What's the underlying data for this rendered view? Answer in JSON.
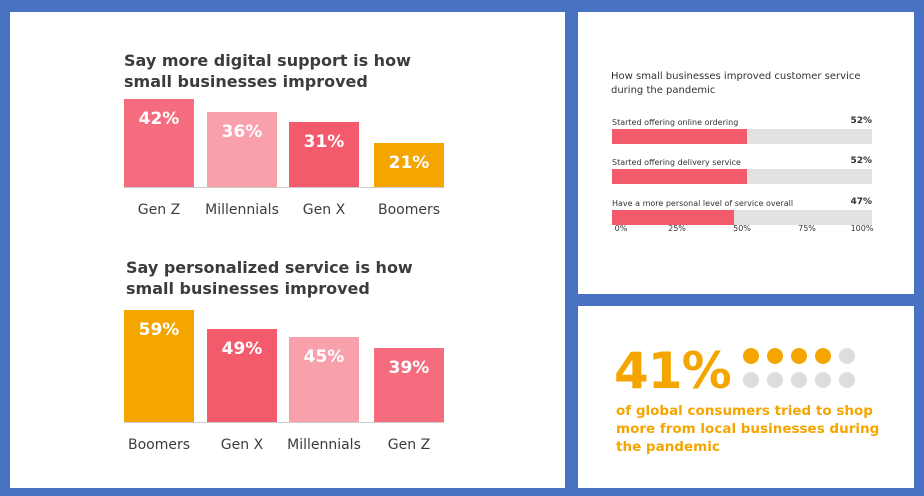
{
  "chart_data": [
    {
      "type": "bar",
      "title": "Say more digital support is how small businesses improved",
      "categories": [
        "Gen Z",
        "Millennials",
        "Gen X",
        "Boomers"
      ],
      "values": [
        42,
        36,
        31,
        21
      ],
      "value_labels": [
        "42%",
        "36%",
        "31%",
        "21%"
      ],
      "colors": [
        "#f56c7e",
        "#f8a0ac",
        "#f35a6b",
        "#f5a500"
      ],
      "ylabel": "",
      "xlabel": "",
      "ylim": [
        0,
        100
      ]
    },
    {
      "type": "bar",
      "title": "Say personalized service is how small businesses improved",
      "categories": [
        "Boomers",
        "Gen X",
        "Millennials",
        "Gen Z"
      ],
      "values": [
        59,
        49,
        45,
        39
      ],
      "value_labels": [
        "59%",
        "49%",
        "45%",
        "39%"
      ],
      "colors": [
        "#f5a500",
        "#f35a6b",
        "#f8a0ac",
        "#f56c7e"
      ],
      "ylabel": "",
      "xlabel": "",
      "ylim": [
        0,
        100
      ]
    },
    {
      "type": "bar",
      "orientation": "horizontal",
      "title": "How small businesses improved customer service during the pandemic",
      "categories": [
        "Started offering online ordering",
        "Started offering delivery service",
        "Have a more personal level of service overall"
      ],
      "values": [
        52,
        52,
        47
      ],
      "value_labels": [
        "52%",
        "52%",
        "47%"
      ],
      "x_ticks": [
        "0%",
        "25%",
        "50%",
        "75%",
        "100%"
      ],
      "xlim": [
        0,
        100
      ],
      "bar_color": "#f35a6b",
      "track_color": "#e3e1e1"
    }
  ],
  "stat": {
    "value_label": "41%",
    "value": 41,
    "caption": "of global consumers tried to shop more from local businesses during the pandemic",
    "dots_total": 10,
    "dots_filled": 4,
    "accent_color": "#f5a500",
    "empty_color": "#dddddd"
  }
}
